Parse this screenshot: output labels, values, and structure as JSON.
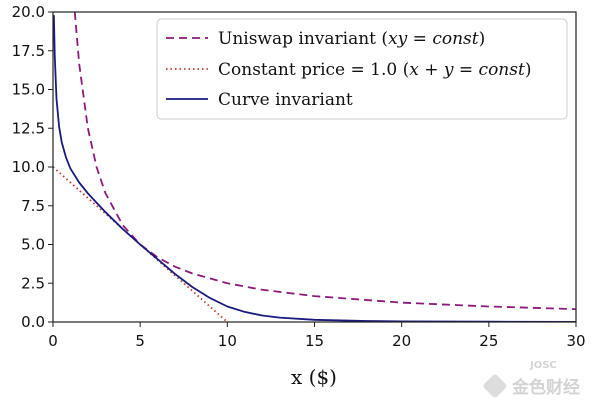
{
  "chart_data": {
    "type": "line",
    "xlabel": "x ($)",
    "ylabel": "",
    "xlim": [
      0,
      30
    ],
    "ylim": [
      0,
      20
    ],
    "x_ticks": [
      "0",
      "5",
      "10",
      "15",
      "20",
      "25",
      "30"
    ],
    "y_ticks": [
      "0.0",
      "2.5",
      "5.0",
      "7.5",
      "10.0",
      "12.5",
      "15.0",
      "17.5",
      "20.0"
    ],
    "grid": false,
    "legend_position": "top-right",
    "series": [
      {
        "name": "Uniswap invariant (xy = const)",
        "name_parts": [
          "Uniswap invariant (",
          "xy",
          " = ",
          "const",
          ")"
        ],
        "style": "dashed",
        "color": "#8b1a7a",
        "x": [
          1.25,
          1.5,
          2,
          2.5,
          3,
          4,
          5,
          6,
          7,
          8,
          10,
          12,
          15,
          20,
          25,
          30
        ],
        "y": [
          20.0,
          16.67,
          12.5,
          10.0,
          8.33,
          6.25,
          5.0,
          4.17,
          3.57,
          3.13,
          2.5,
          2.08,
          1.67,
          1.25,
          1.0,
          0.83
        ]
      },
      {
        "name": "Constant price = 1.0 (x + y = const)",
        "name_parts": [
          "Constant price = 1.0 (",
          "x",
          " + ",
          "y",
          " = ",
          "const",
          ")"
        ],
        "style": "dotted",
        "color": "#c0392b",
        "x": [
          0,
          10
        ],
        "y": [
          10,
          0
        ]
      },
      {
        "name": "Curve invariant",
        "style": "solid",
        "color": "#1a1a7e",
        "x": [
          0.05,
          0.1,
          0.2,
          0.35,
          0.5,
          0.75,
          1.0,
          1.5,
          2,
          3,
          4,
          5,
          6,
          7,
          8,
          9,
          10,
          11,
          12,
          13,
          15,
          18,
          20,
          25,
          30
        ],
        "y": [
          19.8,
          17.2,
          14.4,
          12.6,
          11.6,
          10.6,
          9.9,
          9.0,
          8.3,
          7.1,
          6.0,
          5.0,
          4.05,
          3.1,
          2.25,
          1.55,
          1.0,
          0.65,
          0.42,
          0.28,
          0.14,
          0.06,
          0.04,
          0.02,
          0.01
        ]
      }
    ]
  },
  "watermark": {
    "small": "JOSC",
    "main": "金色财经"
  }
}
